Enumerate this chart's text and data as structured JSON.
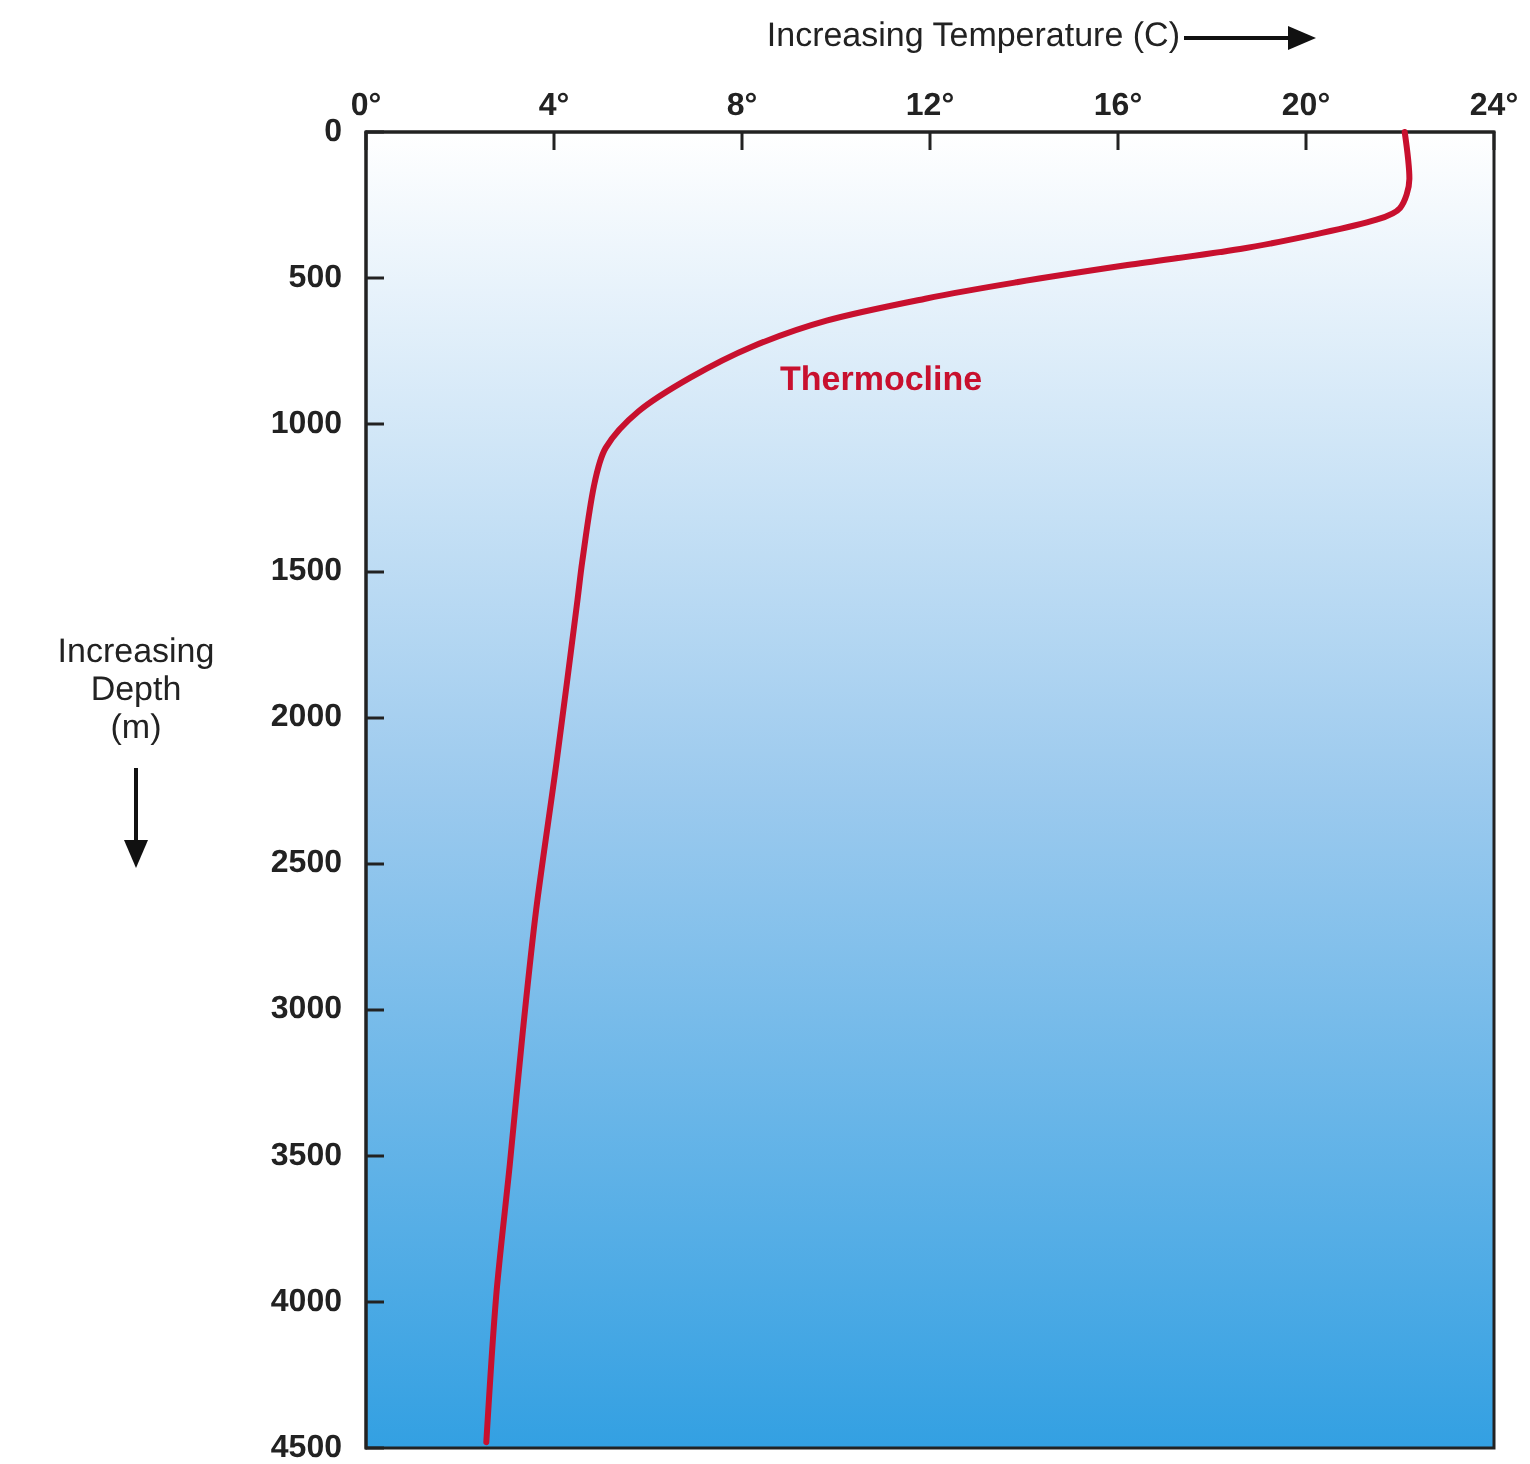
{
  "chart_data": {
    "type": "line",
    "xlabel": "Increasing Temperature (C)",
    "ylabel": "Increasing Depth (m)",
    "annotations": [
      "Thermocline"
    ],
    "series": [
      {
        "color": "#c8102e",
        "x": [
          22.1,
          22.2,
          22.0,
          21.5,
          20.2,
          18.6,
          16.2,
          13.8,
          11.9,
          9.8,
          8.2,
          6.9,
          5.8,
          5.1,
          4.85,
          4.6,
          4.5,
          4.05,
          3.62,
          3.34,
          3.06,
          2.77,
          2.56
        ],
        "values": [
          0,
          160,
          260,
          300,
          350,
          400,
          455,
          515,
          570,
          645,
          735,
          840,
          955,
          1080,
          1210,
          1470,
          1600,
          2160,
          2660,
          3070,
          3530,
          3980,
          4480
        ]
      }
    ],
    "xlim": [
      0,
      24
    ],
    "xticks": [
      {
        "value": 0,
        "label": "0°"
      },
      {
        "value": 4,
        "label": "4°"
      },
      {
        "value": 8,
        "label": "8°"
      },
      {
        "value": 12,
        "label": "12°"
      },
      {
        "value": 16,
        "label": "16°"
      },
      {
        "value": 20,
        "label": "20°"
      },
      {
        "value": 24,
        "label": "24°"
      }
    ],
    "ylim": [
      4500,
      0
    ],
    "yticks": [
      0,
      500,
      1000,
      1500,
      2000,
      2500,
      3000,
      3500,
      4000,
      4500
    ],
    "grid": false,
    "marker": "none",
    "line_style": "solid"
  }
}
